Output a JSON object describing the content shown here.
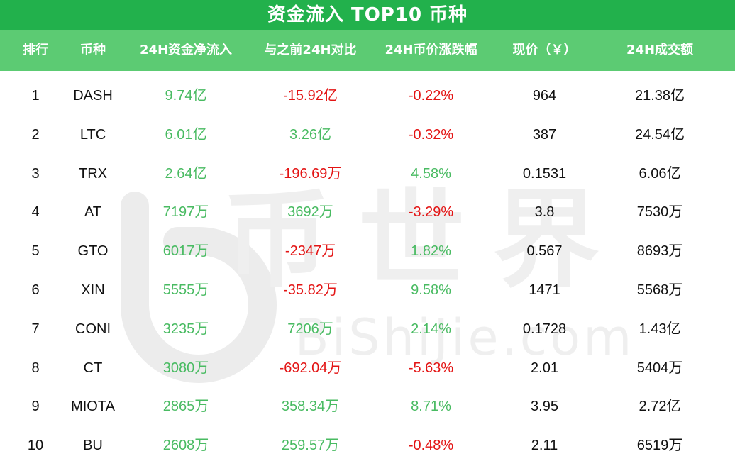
{
  "title": "资金流入 TOP10 币种",
  "headers": [
    "排行",
    "币种",
    "24H资金净流入",
    "与之前24H对比",
    "24H币价涨跌幅",
    "现价（￥）",
    "24H成交额"
  ],
  "watermark": {
    "brand": "币世界",
    "site": "BiShiJie.com"
  },
  "colors": {
    "title_bg": "#22b14c",
    "header_bg": "#5ccb73",
    "positive": "#49bb62",
    "negative": "#e31414"
  },
  "rows": [
    {
      "rank": "1",
      "coin": "DASH",
      "net_inflow": "9.74亿",
      "vs_prev": "-15.92亿",
      "vs_prev_sign": "neg",
      "change": "-0.22%",
      "change_sign": "neg",
      "price": "964",
      "volume": "21.38亿"
    },
    {
      "rank": "2",
      "coin": "LTC",
      "net_inflow": "6.01亿",
      "vs_prev": "3.26亿",
      "vs_prev_sign": "pos",
      "change": "-0.32%",
      "change_sign": "neg",
      "price": "387",
      "volume": "24.54亿"
    },
    {
      "rank": "3",
      "coin": "TRX",
      "net_inflow": "2.64亿",
      "vs_prev": "-196.69万",
      "vs_prev_sign": "neg",
      "change": "4.58%",
      "change_sign": "pos",
      "price": "0.1531",
      "volume": "6.06亿"
    },
    {
      "rank": "4",
      "coin": "AT",
      "net_inflow": "7197万",
      "vs_prev": "3692万",
      "vs_prev_sign": "pos",
      "change": "-3.29%",
      "change_sign": "neg",
      "price": "3.8",
      "volume": "7530万"
    },
    {
      "rank": "5",
      "coin": "GTO",
      "net_inflow": "6017万",
      "vs_prev": "-2347万",
      "vs_prev_sign": "neg",
      "change": "1.82%",
      "change_sign": "pos",
      "price": "0.567",
      "volume": "8693万"
    },
    {
      "rank": "6",
      "coin": "XIN",
      "net_inflow": "5555万",
      "vs_prev": "-35.82万",
      "vs_prev_sign": "neg",
      "change": "9.58%",
      "change_sign": "pos",
      "price": "1471",
      "volume": "5568万"
    },
    {
      "rank": "7",
      "coin": "CONI",
      "net_inflow": "3235万",
      "vs_prev": "7206万",
      "vs_prev_sign": "pos",
      "change": "2.14%",
      "change_sign": "pos",
      "price": "0.1728",
      "volume": "1.43亿"
    },
    {
      "rank": "8",
      "coin": "CT",
      "net_inflow": "3080万",
      "vs_prev": "-692.04万",
      "vs_prev_sign": "neg",
      "change": "-5.63%",
      "change_sign": "neg",
      "price": "2.01",
      "volume": "5404万"
    },
    {
      "rank": "9",
      "coin": "MIOTA",
      "net_inflow": "2865万",
      "vs_prev": "358.34万",
      "vs_prev_sign": "pos",
      "change": "8.71%",
      "change_sign": "pos",
      "price": "3.95",
      "volume": "2.72亿"
    },
    {
      "rank": "10",
      "coin": "BU",
      "net_inflow": "2608万",
      "vs_prev": "259.57万",
      "vs_prev_sign": "pos",
      "change": "-0.48%",
      "change_sign": "neg",
      "price": "2.11",
      "volume": "6519万"
    }
  ]
}
